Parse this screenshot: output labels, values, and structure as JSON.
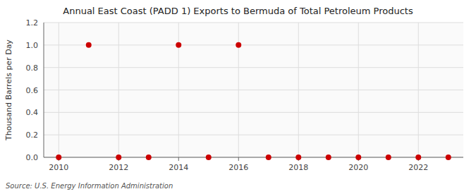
{
  "chart_data": {
    "type": "scatter",
    "title": "Annual East Coast (PADD 1) Exports to Bermuda of Total Petroleum Products",
    "y_label": "Thousand Barrels per Day",
    "source": "Source: U.S. Energy Information Administration",
    "x": [
      2010,
      2011,
      2012,
      2013,
      2014,
      2015,
      2016,
      2017,
      2018,
      2019,
      2020,
      2021,
      2022,
      2023
    ],
    "values": [
      0.0,
      1.0,
      0.0,
      0.0,
      1.0,
      0.0,
      1.0,
      0.0,
      0.0,
      0.0,
      0.0,
      0.0,
      0.0,
      0.0
    ],
    "color": "#cc0000",
    "xlim": [
      2009.5,
      2023.5
    ],
    "xticks": [
      2010,
      2012,
      2014,
      2016,
      2018,
      2020,
      2022
    ],
    "ylim": [
      0.0,
      1.2
    ],
    "yticks": [
      {
        "value": 0.0,
        "label": "0.0"
      },
      0.2,
      0.4,
      0.6,
      0.8,
      {
        "value": 1.0,
        "label": "1.0"
      },
      1.2
    ],
    "grid": true
  }
}
